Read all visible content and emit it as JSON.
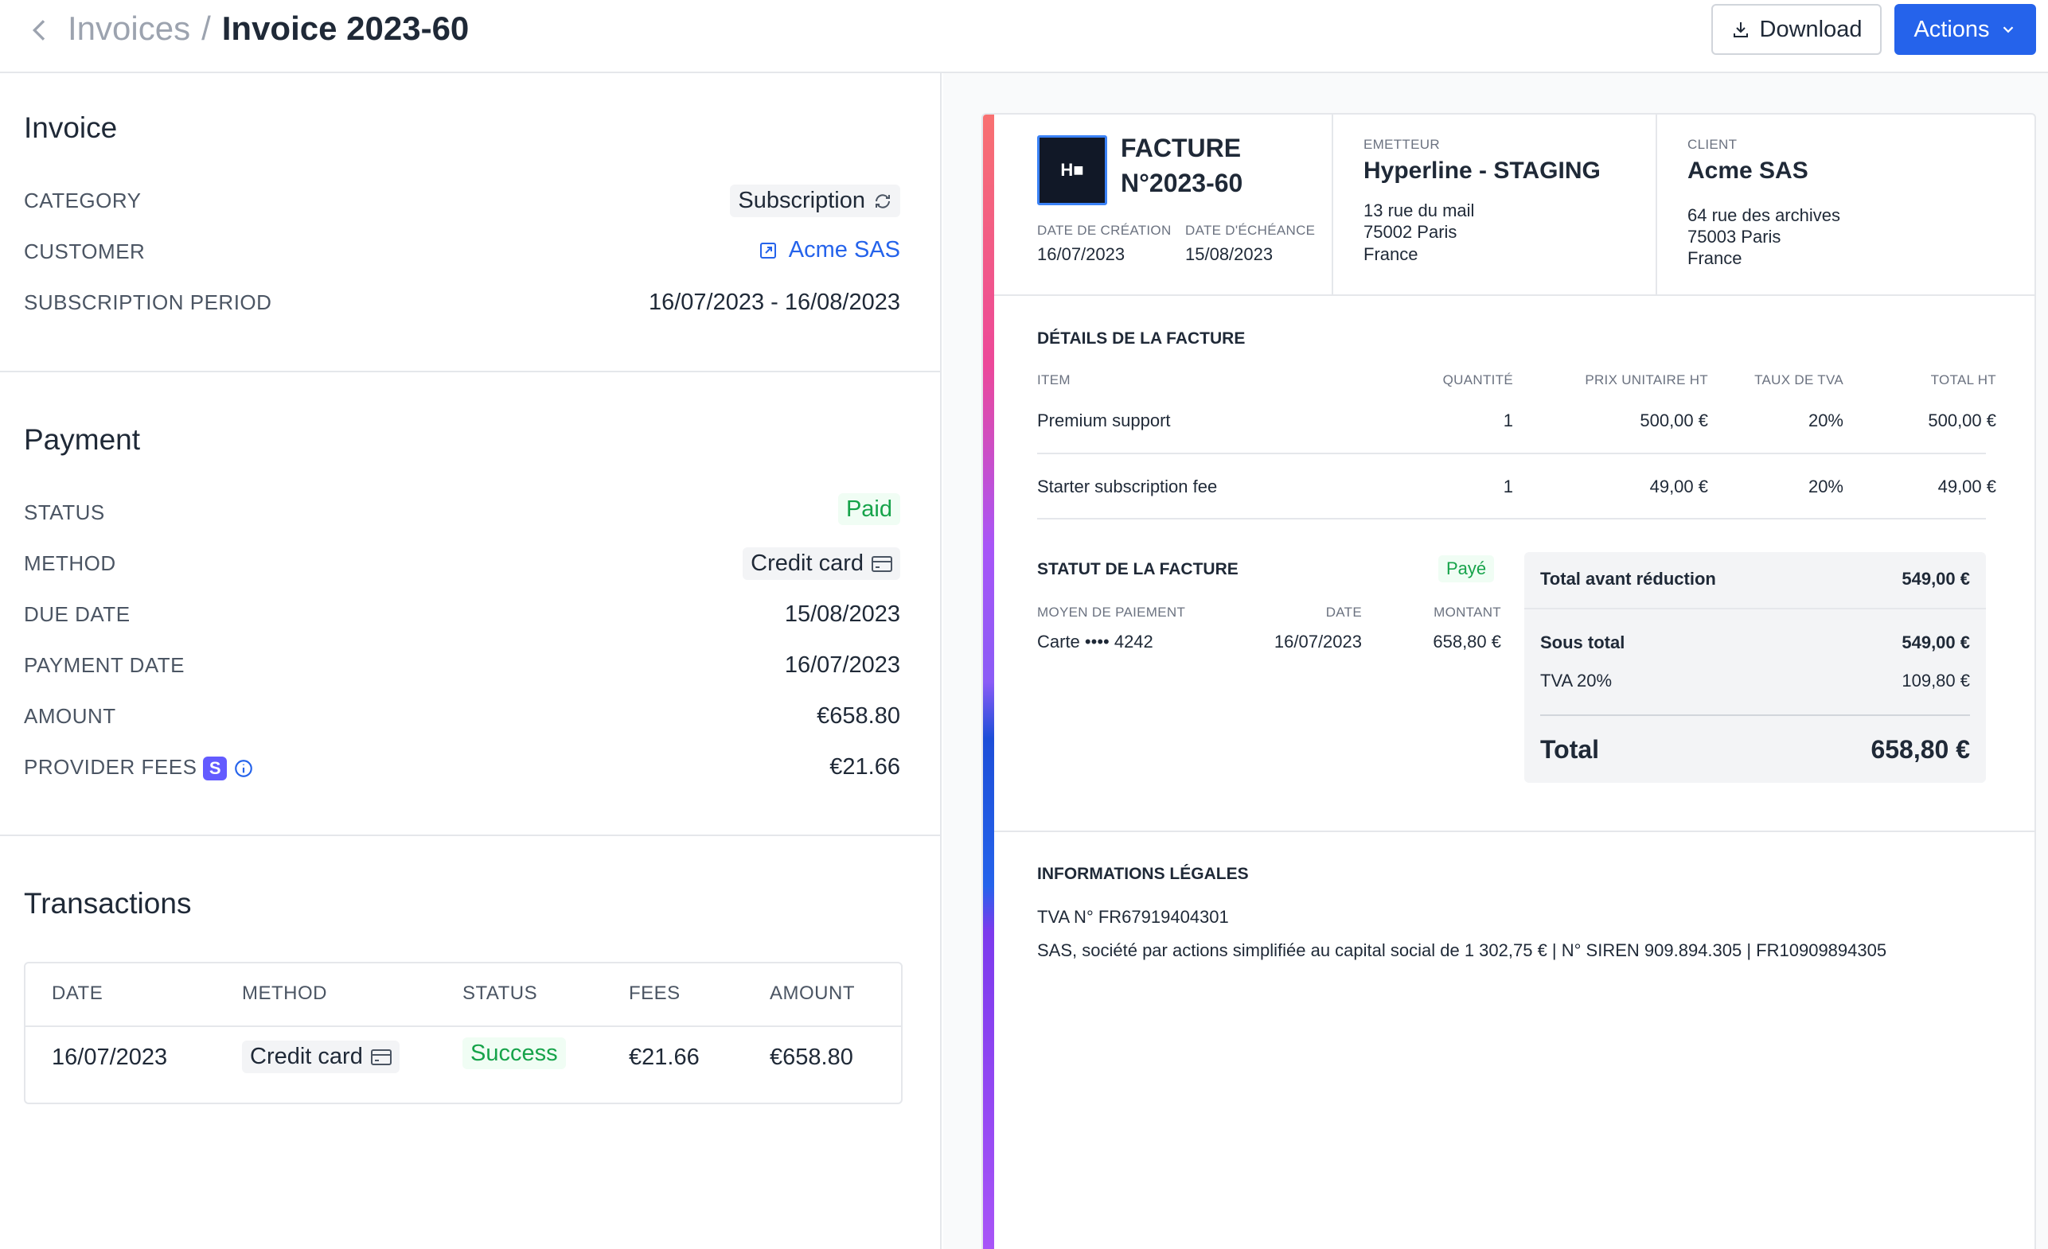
{
  "header": {
    "breadcrumb_parent": "Invoices",
    "breadcrumb_separator": "/",
    "breadcrumb_current": "Invoice 2023-60",
    "download_label": "Download",
    "actions_label": "Actions"
  },
  "invoice": {
    "title": "Invoice",
    "category_label": "CATEGORY",
    "category_value": "Subscription",
    "customer_label": "CUSTOMER",
    "customer_value": "Acme SAS",
    "period_label": "SUBSCRIPTION PERIOD",
    "period_value": "16/07/2023 - 16/08/2023"
  },
  "payment": {
    "title": "Payment",
    "status_label": "STATUS",
    "status_value": "Paid",
    "method_label": "METHOD",
    "method_value": "Credit card",
    "due_label": "DUE DATE",
    "due_value": "15/08/2023",
    "paydate_label": "PAYMENT DATE",
    "paydate_value": "16/07/2023",
    "amount_label": "AMOUNT",
    "amount_value": "€658.80",
    "fees_label": "PROVIDER FEES",
    "fees_badge": "S",
    "fees_value": "€21.66"
  },
  "transactions": {
    "title": "Transactions",
    "columns": [
      "DATE",
      "METHOD",
      "STATUS",
      "FEES",
      "AMOUNT"
    ],
    "rows": [
      {
        "date": "16/07/2023",
        "method": "Credit card",
        "status": "Success",
        "fees": "€21.66",
        "amount": "€658.80"
      }
    ]
  },
  "document": {
    "logo_text": "H■",
    "title_line1": "FACTURE",
    "title_line2": "N°2023-60",
    "creation_label": "DATE DE CRÉATION",
    "creation_value": "16/07/2023",
    "due_label": "DATE D'ÉCHÉANCE",
    "due_value": "15/08/2023",
    "issuer_label": "EMETTEUR",
    "issuer_name": "Hyperline - STAGING",
    "issuer_addr1": "13 rue du mail",
    "issuer_addr2": "75002 Paris",
    "issuer_addr3": "France",
    "client_label": "CLIENT",
    "client_name": "Acme SAS",
    "client_addr1": "64 rue des archives",
    "client_addr2": "75003 Paris",
    "client_addr3": "France",
    "details_title": "DÉTAILS DE LA FACTURE",
    "details_columns": [
      "ITEM",
      "QUANTITÉ",
      "PRIX UNITAIRE HT",
      "TAUX DE TVA",
      "TOTAL HT"
    ],
    "items": [
      {
        "item": "Premium support",
        "qty": "1",
        "unit": "500,00 €",
        "vat": "20%",
        "total": "500,00 €"
      },
      {
        "item": "Starter subscription fee",
        "qty": "1",
        "unit": "49,00 €",
        "vat": "20%",
        "total": "49,00 €"
      }
    ],
    "status_title": "STATUT DE LA FACTURE",
    "status_value": "Payé",
    "pay_method_label": "MOYEN DE PAIEMENT",
    "pay_date_label": "DATE",
    "pay_amount_label": "MONTANT",
    "pay_method_value": "Carte •••• 4242",
    "pay_date_value": "16/07/2023",
    "pay_amount_value": "658,80 €",
    "before_discount_label": "Total avant réduction",
    "before_discount_value": "549,00 €",
    "subtotal_label": "Sous total",
    "subtotal_value": "549,00 €",
    "vat_label": "TVA 20%",
    "vat_value": "109,80 €",
    "total_label": "Total",
    "total_value": "658,80 €",
    "legal_title": "INFORMATIONS LÉGALES",
    "legal_line1": "TVA N° FR67919404301",
    "legal_line2": "SAS, société par actions simplifiée au capital social de 1 302,75 € | N° SIREN 909.894.305 | FR10909894305"
  },
  "colors": {
    "accent": "#2563eb",
    "success": "#16a34a",
    "stripe": "#635bff"
  }
}
